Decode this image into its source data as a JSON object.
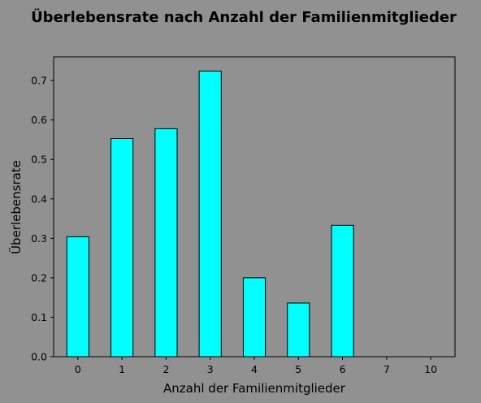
{
  "chart_data": {
    "type": "bar",
    "title": "Überlebensrate nach Anzahl der Familienmitglieder",
    "xlabel": "Anzahl der Familienmitglieder",
    "ylabel": "Überlebensrate",
    "categories": [
      "0",
      "1",
      "2",
      "3",
      "4",
      "5",
      "6",
      "7",
      "10"
    ],
    "values": [
      0.304,
      0.553,
      0.578,
      0.724,
      0.2,
      0.136,
      0.333,
      0.0,
      0.0
    ],
    "ylim": [
      0,
      0.76
    ],
    "yticks": [
      "0.0",
      "0.1",
      "0.2",
      "0.3",
      "0.4",
      "0.5",
      "0.6",
      "0.7"
    ],
    "grid": false,
    "bar_color": "#00ffff",
    "edge_color": "#000000",
    "background_color": "#919191"
  }
}
